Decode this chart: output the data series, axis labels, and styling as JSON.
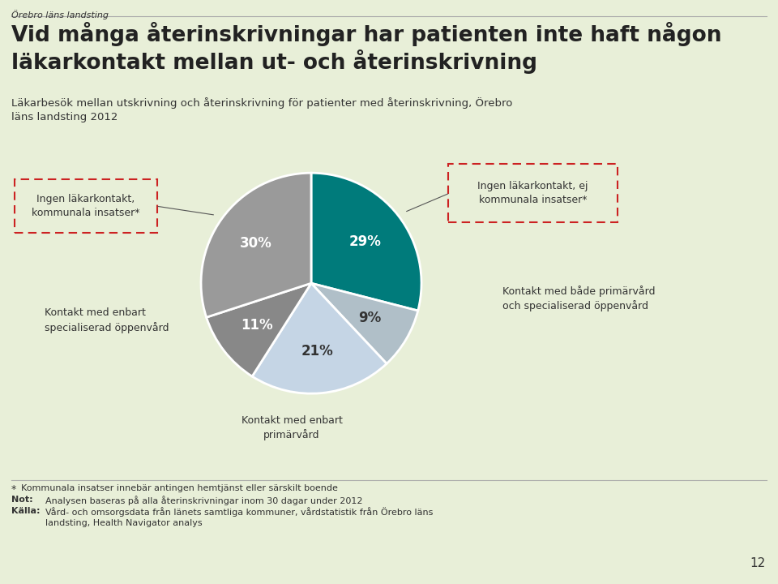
{
  "title_main": "Vid många återinskrivningar har patienten inte haft någon\nläkarkontakt mellan ut- och återinskrivning",
  "subtitle": "Läkarbesök mellan utskrivning och återinskrivning för patienter med återinskrivning, Örebro\nläns landsting 2012",
  "header": "Örebro läns landsting",
  "values": [
    29,
    9,
    21,
    11,
    30
  ],
  "pct_labels": [
    "29%",
    "9%",
    "21%",
    "11%",
    "30%"
  ],
  "colors": [
    "#007b7b",
    "#b0bfc8",
    "#c5d5e5",
    "#888888",
    "#9a9a9a"
  ],
  "pct_label_colors": [
    "white",
    "#333333",
    "#333333",
    "white",
    "white"
  ],
  "footnote_star": "Kommunala insatser innebär antingen hemtjänst eller särskilt boende",
  "footnote_not": "Analysen baseras på alla återinskrivningar inom 30 dagar under 2012",
  "footnote_kalla": "Vård- och omsorgsdata från länets samtliga kommuner, vårdstatistik från Örebro läns\nlandsting, Health Navigator analys",
  "page_number": "12",
  "background_color": "#e8efd8",
  "text_color": "#333333",
  "dashed_box_color": "#cc2222"
}
